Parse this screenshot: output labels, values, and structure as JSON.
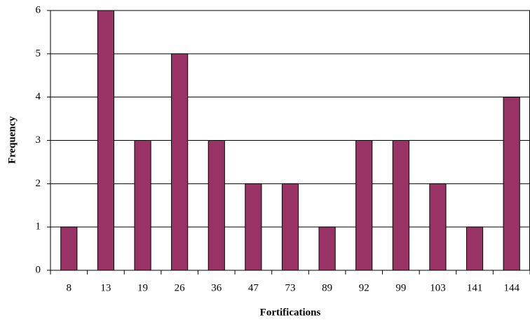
{
  "chart_data": {
    "type": "bar",
    "x_label": "Fortifications",
    "y_label": "Frequency",
    "categories": [
      "8",
      "13",
      "19",
      "26",
      "36",
      "47",
      "73",
      "89",
      "92",
      "99",
      "103",
      "141",
      "144"
    ],
    "values": [
      1,
      6,
      3,
      5,
      3,
      2,
      2,
      1,
      3,
      3,
      2,
      1,
      4
    ],
    "color": "#993366",
    "ylim": [
      0,
      6
    ],
    "yticks": [
      0,
      1,
      2,
      3,
      4,
      5,
      6
    ],
    "grid": true
  }
}
